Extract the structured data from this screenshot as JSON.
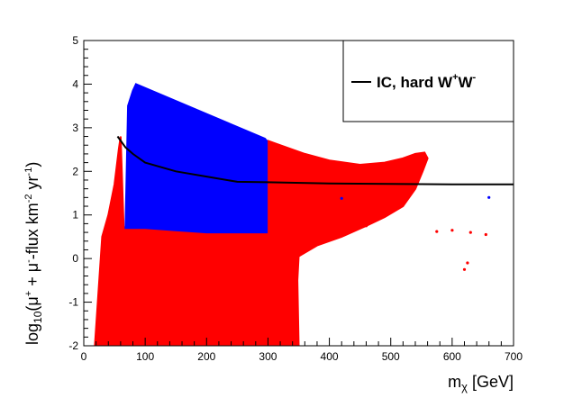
{
  "chart_data": {
    "type": "scatter",
    "xlabel": "m_χ [GeV]",
    "ylabel": "log_10(μ^+ + μ^--flux km^-2 yr^-1)",
    "xlim": [
      0,
      700
    ],
    "ylim": [
      -2,
      5
    ],
    "x_ticks": [
      0,
      100,
      200,
      300,
      400,
      500,
      600,
      700
    ],
    "y_ticks": [
      -2,
      -1,
      0,
      1,
      2,
      3,
      4,
      5
    ],
    "grid": false,
    "legend_placement": "top-right",
    "colors": {
      "red": "#ff0000",
      "blue": "#0000ff",
      "line": "#000000"
    },
    "series": [
      {
        "name": "IC, hard W+W-",
        "legend_label": "IC, hard W",
        "legend_sup1": "+",
        "legend_mid": "W",
        "legend_sup2": "-",
        "type": "line",
        "color": "#000000",
        "x": [
          55,
          68,
          80,
          100,
          150,
          200,
          250,
          300,
          400,
          500,
          600,
          700
        ],
        "y": [
          2.8,
          2.55,
          2.4,
          2.2,
          2.0,
          1.88,
          1.76,
          1.75,
          1.72,
          1.71,
          1.7,
          1.7
        ]
      },
      {
        "type": "scatter-region",
        "color": "#ff0000",
        "outline_x": [
          18,
          30,
          40,
          50,
          57,
          60,
          65,
          300,
          310,
          330,
          360,
          400,
          450,
          490,
          520,
          540,
          555,
          560,
          552,
          540,
          520,
          490,
          460,
          420,
          380,
          350,
          348,
          350,
          20,
          18
        ],
        "outline_y": [
          -2.0,
          0.5,
          1.0,
          1.7,
          2.5,
          2.8,
          0.7,
          2.7,
          2.65,
          2.55,
          2.4,
          2.25,
          2.15,
          2.2,
          2.3,
          2.4,
          2.43,
          2.3,
          2.0,
          1.6,
          1.2,
          0.95,
          0.75,
          0.5,
          0.3,
          0.05,
          -0.5,
          -2.0,
          -2.0,
          -2.0
        ]
      },
      {
        "type": "scatter-region",
        "color": "#0000ff",
        "outline_x": [
          68,
          72,
          80,
          85,
          295,
          298,
          298,
          290,
          200,
          150,
          100,
          68
        ],
        "outline_y": [
          0.7,
          3.5,
          3.85,
          4.0,
          2.75,
          2.7,
          0.6,
          0.6,
          0.6,
          0.65,
          0.7,
          0.7
        ]
      },
      {
        "type": "scatter",
        "color": "#ff0000",
        "x": [
          455,
          460,
          575,
          600,
          620,
          625,
          630,
          655
        ],
        "y": [
          0.8,
          0.75,
          0.62,
          0.65,
          -0.25,
          -0.1,
          0.6,
          0.55
        ]
      },
      {
        "type": "scatter",
        "color": "#0000ff",
        "x": [
          420,
          660
        ],
        "y": [
          1.38,
          1.4
        ]
      }
    ]
  }
}
